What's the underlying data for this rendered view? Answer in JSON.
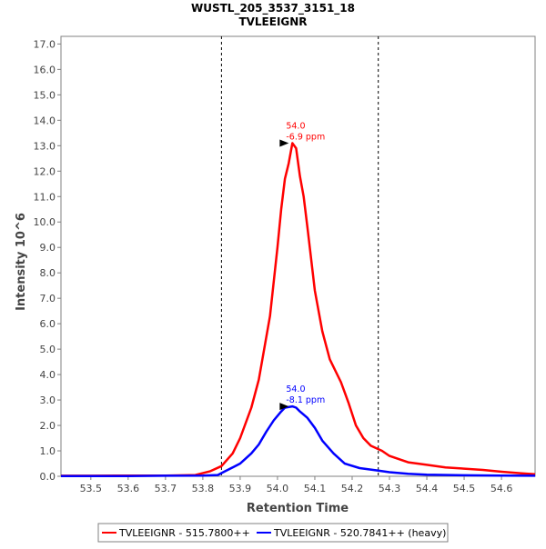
{
  "chart_data": {
    "type": "line",
    "title": "WUSTL_205_3537_3151_18",
    "subtitle": "TVLEEIGNR",
    "xlabel": "Retention Time",
    "ylabel": "Intensity 10^6",
    "xlim": [
      53.42,
      54.69
    ],
    "ylim": [
      0,
      17.3
    ],
    "x_ticks": [
      53.5,
      53.6,
      53.7,
      53.8,
      53.9,
      54.0,
      54.1,
      54.2,
      54.3,
      54.4,
      54.5,
      54.6
    ],
    "y_ticks": [
      0.0,
      1.0,
      2.0,
      3.0,
      4.0,
      5.0,
      6.0,
      7.0,
      8.0,
      9.0,
      10.0,
      11.0,
      12.0,
      13.0,
      14.0,
      15.0,
      16.0,
      17.0
    ],
    "grid": false,
    "legend_position": "bottom",
    "integration_boundaries": [
      53.85,
      54.27
    ],
    "series": [
      {
        "name": "TVLEEIGNR - 515.7800++",
        "color": "#ff0000",
        "peak_label": [
          "54.0",
          "-6.9 ppm"
        ],
        "peak": [
          54.04,
          13.1
        ],
        "points": [
          [
            53.42,
            0.02
          ],
          [
            53.5,
            0.02
          ],
          [
            53.6,
            0.03
          ],
          [
            53.7,
            0.03
          ],
          [
            53.78,
            0.05
          ],
          [
            53.82,
            0.2
          ],
          [
            53.85,
            0.4
          ],
          [
            53.88,
            0.9
          ],
          [
            53.9,
            1.5
          ],
          [
            53.93,
            2.7
          ],
          [
            53.95,
            3.8
          ],
          [
            53.98,
            6.3
          ],
          [
            54.0,
            9.0
          ],
          [
            54.01,
            10.5
          ],
          [
            54.02,
            11.7
          ],
          [
            54.03,
            12.3
          ],
          [
            54.04,
            13.1
          ],
          [
            54.05,
            12.9
          ],
          [
            54.06,
            11.8
          ],
          [
            54.07,
            11.0
          ],
          [
            54.08,
            9.8
          ],
          [
            54.1,
            7.3
          ],
          [
            54.12,
            5.7
          ],
          [
            54.14,
            4.6
          ],
          [
            54.17,
            3.7
          ],
          [
            54.19,
            2.9
          ],
          [
            54.21,
            2.0
          ],
          [
            54.23,
            1.5
          ],
          [
            54.25,
            1.2
          ],
          [
            54.28,
            1.0
          ],
          [
            54.3,
            0.8
          ],
          [
            54.35,
            0.55
          ],
          [
            54.4,
            0.45
          ],
          [
            54.45,
            0.35
          ],
          [
            54.5,
            0.3
          ],
          [
            54.55,
            0.25
          ],
          [
            54.6,
            0.18
          ],
          [
            54.65,
            0.12
          ],
          [
            54.69,
            0.08
          ]
        ]
      },
      {
        "name": "TVLEEIGNR - 520.7841++ (heavy)",
        "color": "#0000ff",
        "peak_label": [
          "54.0",
          "-8.1 ppm"
        ],
        "peak": [
          54.04,
          2.75
        ],
        "points": [
          [
            53.42,
            0.01
          ],
          [
            53.5,
            0.01
          ],
          [
            53.6,
            0.01
          ],
          [
            53.7,
            0.02
          ],
          [
            53.8,
            0.03
          ],
          [
            53.84,
            0.05
          ],
          [
            53.86,
            0.2
          ],
          [
            53.88,
            0.35
          ],
          [
            53.9,
            0.5
          ],
          [
            53.93,
            0.9
          ],
          [
            53.95,
            1.25
          ],
          [
            53.97,
            1.75
          ],
          [
            53.99,
            2.2
          ],
          [
            54.01,
            2.55
          ],
          [
            54.02,
            2.7
          ],
          [
            54.04,
            2.75
          ],
          [
            54.05,
            2.7
          ],
          [
            54.06,
            2.55
          ],
          [
            54.08,
            2.3
          ],
          [
            54.1,
            1.9
          ],
          [
            54.12,
            1.4
          ],
          [
            54.15,
            0.9
          ],
          [
            54.18,
            0.5
          ],
          [
            54.22,
            0.32
          ],
          [
            54.27,
            0.22
          ],
          [
            54.3,
            0.16
          ],
          [
            54.35,
            0.1
          ],
          [
            54.4,
            0.06
          ],
          [
            54.5,
            0.04
          ],
          [
            54.6,
            0.03
          ],
          [
            54.69,
            0.02
          ]
        ]
      }
    ]
  }
}
